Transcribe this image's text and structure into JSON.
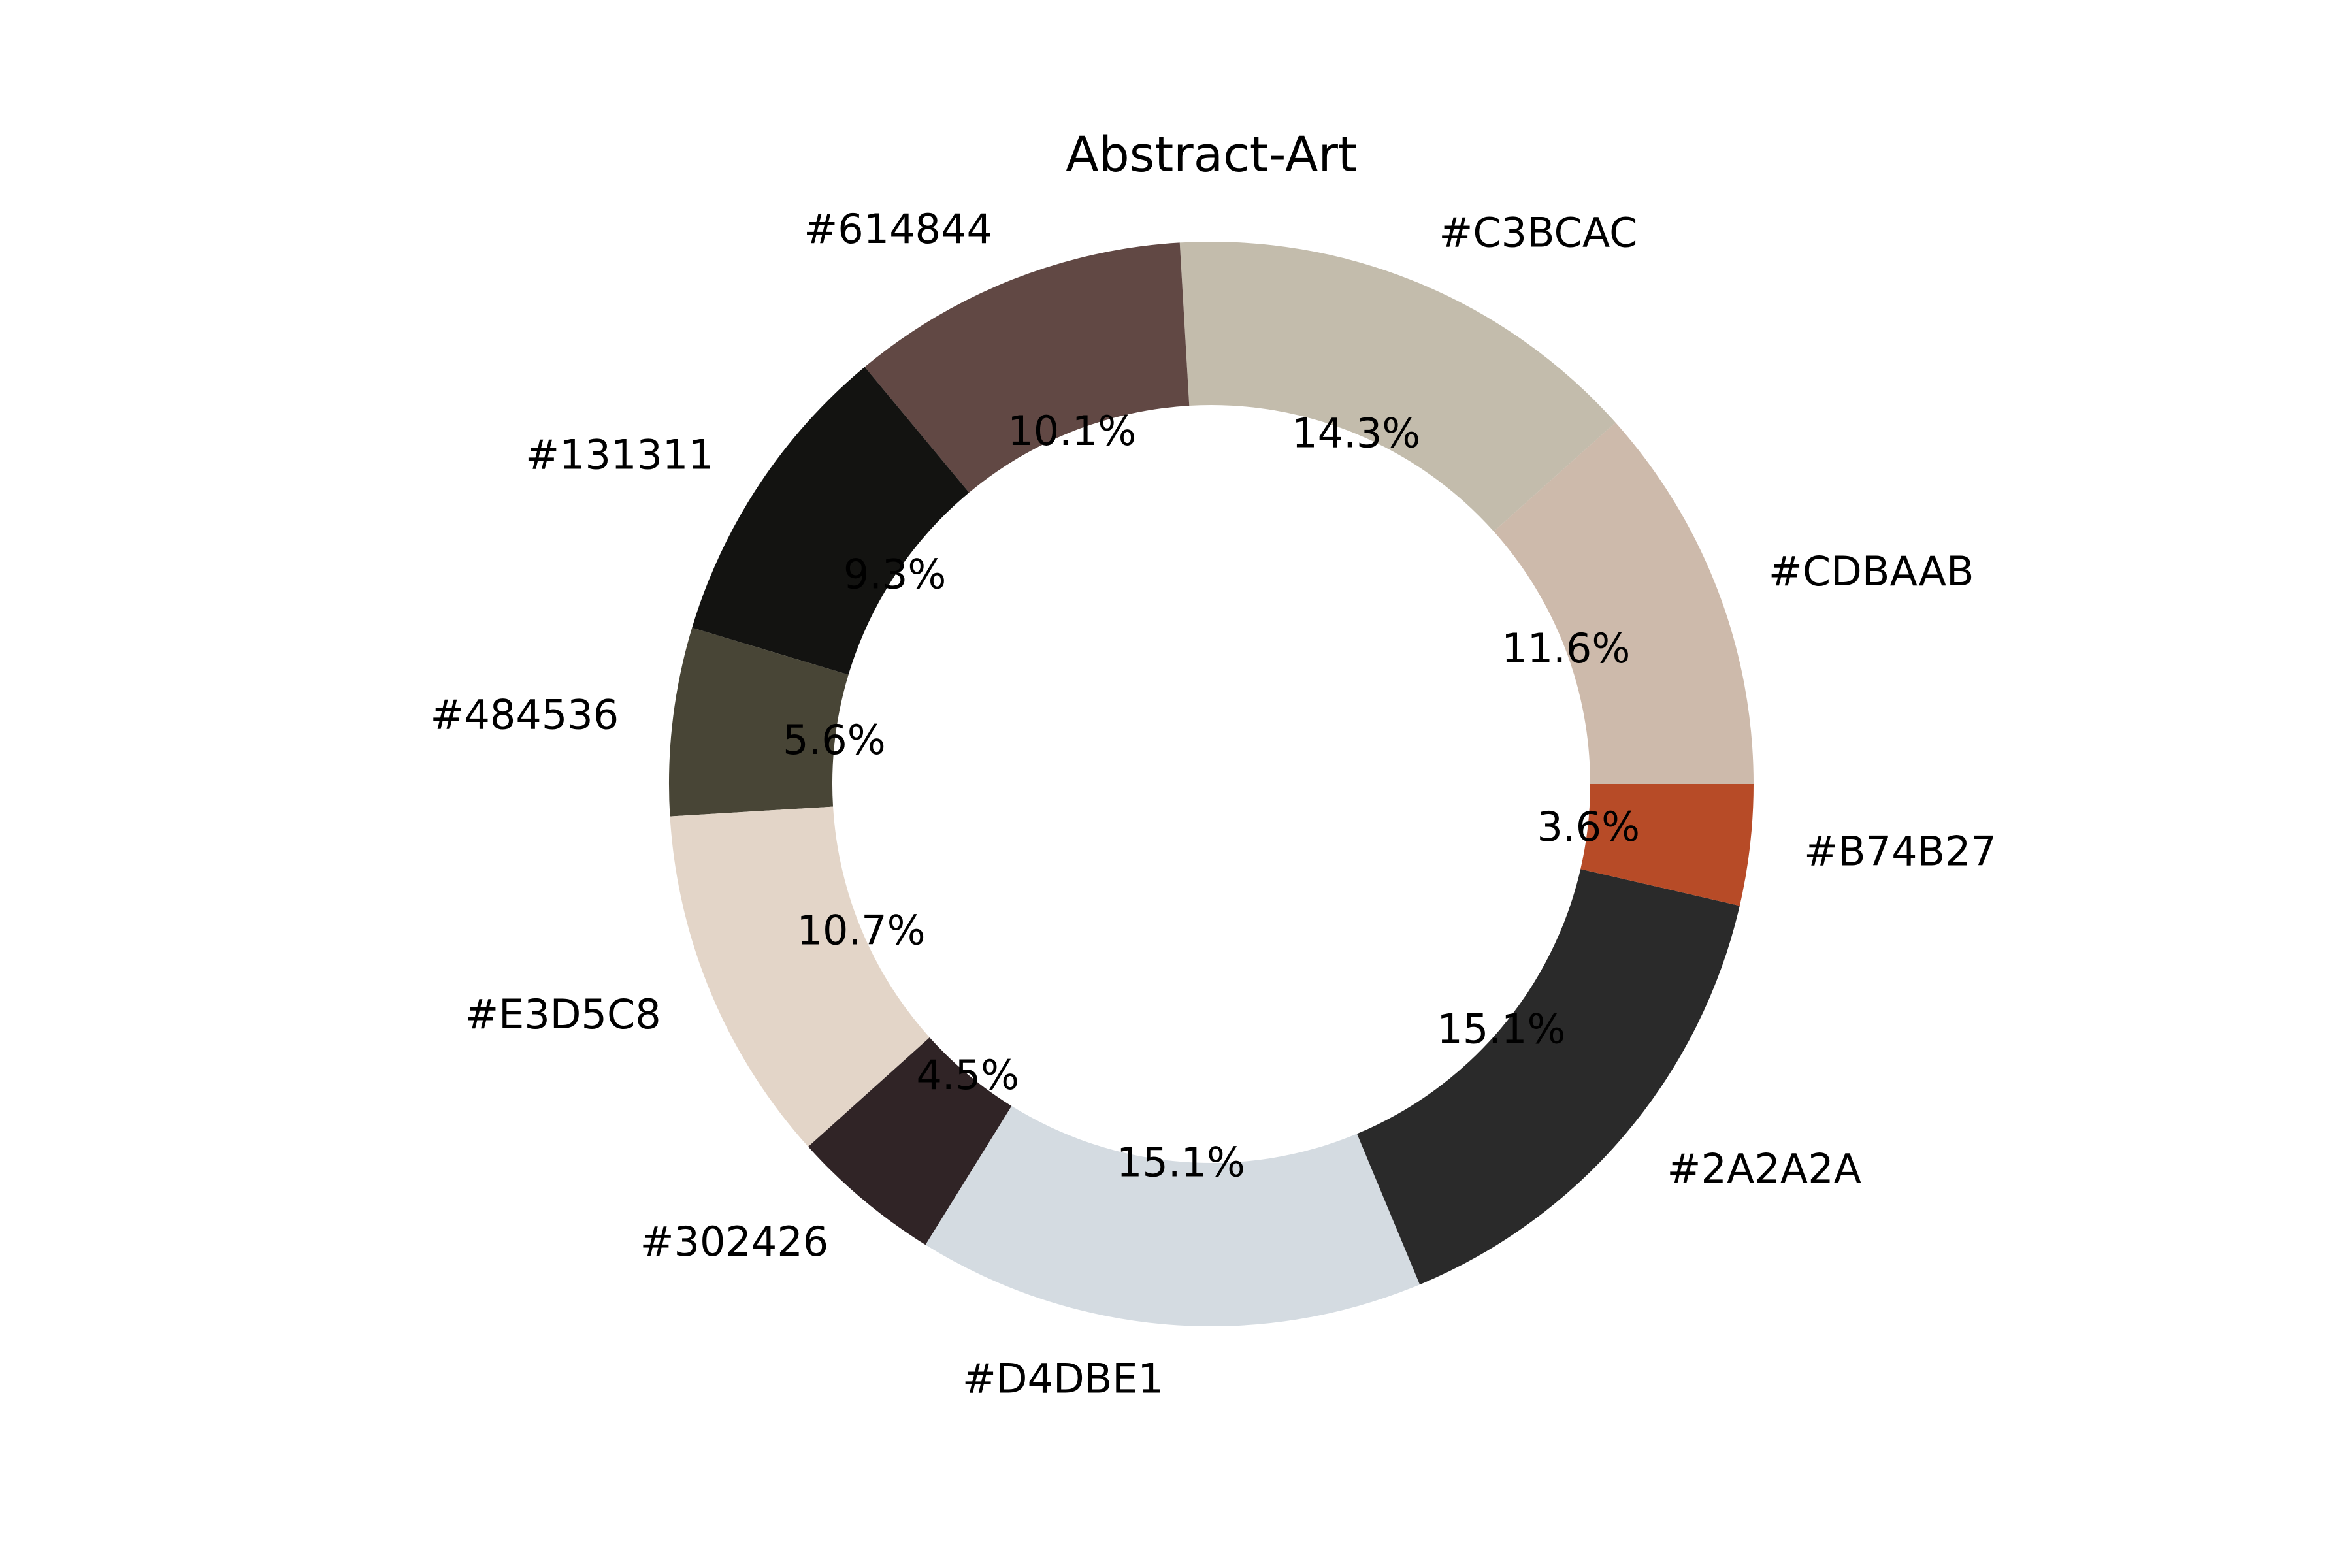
{
  "chart_data": {
    "type": "pie",
    "variant": "donut",
    "title": "Abstract-Art",
    "start_angle_deg": 0,
    "direction": "counterclockwise",
    "slices": [
      {
        "label": "#CDBAAB",
        "value": 11.6,
        "pct_text": "11.6%",
        "color": "#CDBAAB"
      },
      {
        "label": "#C3BCAC",
        "value": 14.3,
        "pct_text": "14.3%",
        "color": "#C3BCAC"
      },
      {
        "label": "#614844",
        "value": 10.1,
        "pct_text": "10.1%",
        "color": "#614844"
      },
      {
        "label": "#131311",
        "value": 9.3,
        "pct_text": "9.3%",
        "color": "#131311"
      },
      {
        "label": "#484536",
        "value": 5.6,
        "pct_text": "5.6%",
        "color": "#484536"
      },
      {
        "label": "#E3D5C8",
        "value": 10.7,
        "pct_text": "10.7%",
        "color": "#E3D5C8"
      },
      {
        "label": "#302426",
        "value": 4.5,
        "pct_text": "4.5%",
        "color": "#302426"
      },
      {
        "label": "#D4DBE1",
        "value": 15.1,
        "pct_text": "15.1%",
        "color": "#D4DBE1"
      },
      {
        "label": "#2A2A2A",
        "value": 15.1,
        "pct_text": "15.1%",
        "color": "#2A2A2A"
      },
      {
        "label": "#B74B27",
        "value": 3.6,
        "pct_text": "3.6%",
        "color": "#B74B27"
      }
    ]
  }
}
